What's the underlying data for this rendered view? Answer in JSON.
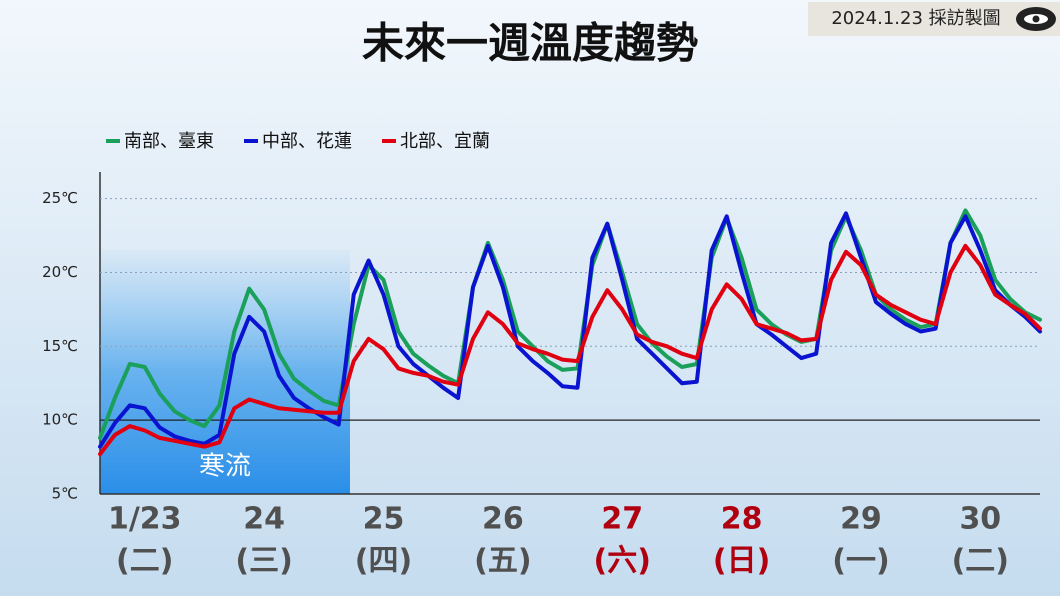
{
  "chart_data": {
    "type": "line",
    "title": "未來一週溫度趨勢",
    "stamp": "2024.1.23 採訪製圖",
    "annotation": "寒流",
    "categories": [
      null,
      null,
      null,
      "1/23",
      null,
      null,
      null,
      null,
      null,
      null,
      null,
      "24",
      null,
      null,
      null,
      null,
      null,
      null,
      null,
      "25",
      null,
      null,
      null,
      null,
      null,
      null,
      null,
      "26",
      null,
      null,
      null,
      null,
      null,
      null,
      null,
      "27",
      null,
      null,
      null,
      null,
      null,
      null,
      null,
      "28",
      null,
      null,
      null,
      null,
      null,
      null,
      null,
      "29",
      null,
      null,
      null,
      null,
      null,
      null,
      null,
      "30",
      null,
      null,
      null,
      null
    ],
    "weekdays": [
      null,
      null,
      null,
      "(二)",
      null,
      null,
      null,
      null,
      null,
      null,
      null,
      "(三)",
      null,
      null,
      null,
      null,
      null,
      null,
      null,
      "(四)",
      null,
      null,
      null,
      null,
      null,
      null,
      null,
      "(五)",
      null,
      null,
      null,
      null,
      null,
      null,
      null,
      "(六)",
      null,
      null,
      null,
      null,
      null,
      null,
      null,
      "(日)",
      null,
      null,
      null,
      null,
      null,
      null,
      null,
      "(一)",
      null,
      null,
      null,
      null,
      null,
      null,
      null,
      "(二)",
      null,
      null,
      null,
      null
    ],
    "label_color": "#505050",
    "weekend_label_color": "#b00010",
    "weekend_days": [
      "(六)",
      "(日)"
    ],
    "series": [
      {
        "name": "南部、臺東",
        "color": "#1aa05a",
        "values": [
          8.8,
          11.5,
          13.8,
          13.6,
          11.8,
          10.6,
          10.0,
          9.6,
          11.0,
          16.0,
          18.9,
          17.5,
          14.5,
          12.8,
          12.0,
          11.3,
          11.0,
          16.5,
          20.5,
          19.5,
          16.0,
          14.5,
          13.7,
          13.0,
          12.5,
          19.0,
          22.0,
          19.5,
          16.0,
          15.0,
          14.0,
          13.4,
          13.5,
          20.5,
          23.3,
          20.0,
          16.5,
          15.2,
          14.3,
          13.6,
          13.8,
          21.0,
          23.7,
          21.0,
          17.5,
          16.5,
          15.8,
          15.3,
          15.5,
          21.5,
          23.8,
          21.5,
          18.5,
          17.5,
          16.8,
          16.3,
          16.5,
          22.0,
          24.2,
          22.5,
          19.5,
          18.2,
          17.3,
          16.8
        ]
      },
      {
        "name": "中部、花蓮",
        "color": "#0a14d0",
        "values": [
          8.2,
          9.8,
          11.0,
          10.8,
          9.5,
          8.9,
          8.6,
          8.4,
          9.0,
          14.5,
          17.0,
          16.0,
          13.0,
          11.5,
          10.8,
          10.2,
          9.7,
          18.5,
          20.8,
          18.5,
          15.0,
          13.8,
          13.0,
          12.2,
          11.5,
          19.0,
          21.8,
          19.0,
          15.0,
          14.0,
          13.2,
          12.3,
          12.2,
          21.0,
          23.3,
          19.5,
          15.5,
          14.5,
          13.5,
          12.5,
          12.6,
          21.5,
          23.8,
          20.0,
          16.5,
          15.8,
          15.0,
          14.2,
          14.5,
          22.0,
          24.0,
          21.0,
          18.0,
          17.2,
          16.5,
          16.0,
          16.2,
          22.0,
          23.8,
          21.5,
          18.8,
          17.8,
          17.0,
          16.0
        ]
      },
      {
        "name": "北部、宜蘭",
        "color": "#e00010",
        "values": [
          7.7,
          9.0,
          9.6,
          9.3,
          8.8,
          8.6,
          8.4,
          8.2,
          8.5,
          10.8,
          11.4,
          11.1,
          10.8,
          10.7,
          10.6,
          10.5,
          10.5,
          14.0,
          15.5,
          14.8,
          13.5,
          13.2,
          13.0,
          12.6,
          12.4,
          15.5,
          17.3,
          16.5,
          15.2,
          14.8,
          14.5,
          14.1,
          14.0,
          17.0,
          18.8,
          17.5,
          15.8,
          15.3,
          15.0,
          14.5,
          14.2,
          17.5,
          19.2,
          18.2,
          16.5,
          16.2,
          15.9,
          15.4,
          15.5,
          19.5,
          21.4,
          20.5,
          18.5,
          17.8,
          17.3,
          16.8,
          16.5,
          20.0,
          21.8,
          20.5,
          18.5,
          17.8,
          17.2,
          16.2
        ]
      }
    ],
    "ylim": [
      5,
      26.8
    ],
    "yticks": [
      {
        "value": 5,
        "label": "5℃"
      },
      {
        "value": 10,
        "label": "10℃"
      },
      {
        "value": 15,
        "label": "15℃"
      },
      {
        "value": 20,
        "label": "20℃"
      },
      {
        "value": 25,
        "label": "25℃"
      }
    ],
    "grid": true
  }
}
